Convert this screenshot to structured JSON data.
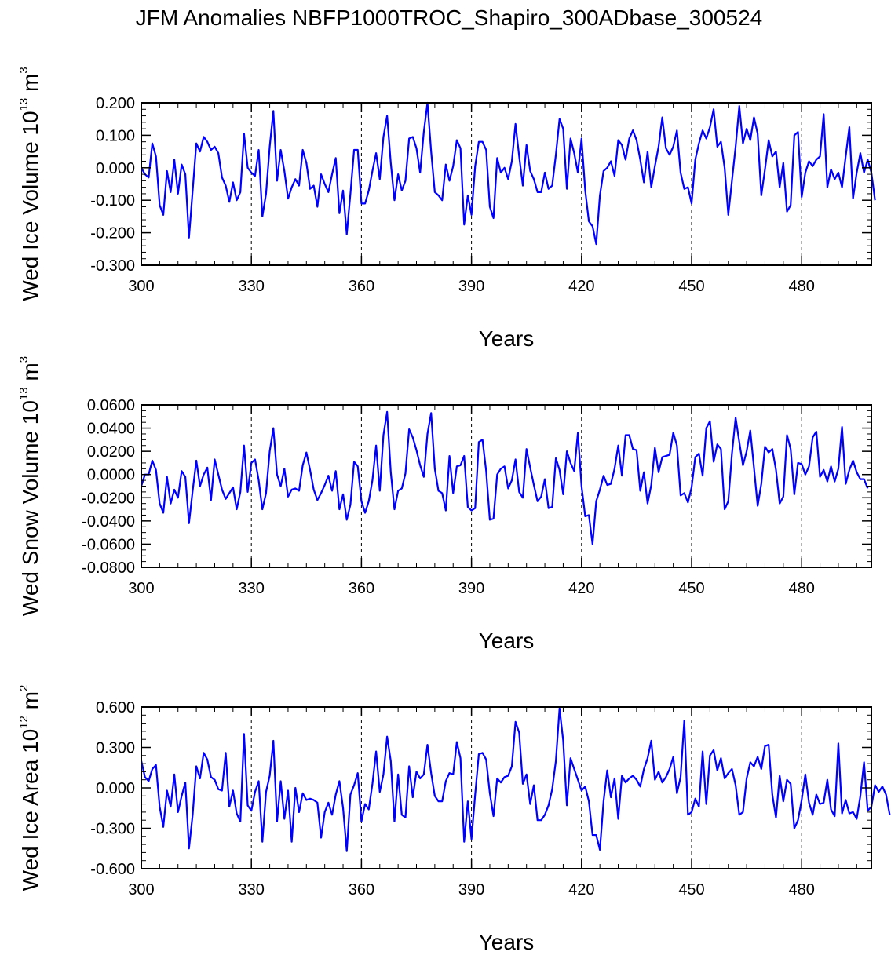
{
  "title": "JFM Anomalies NBFP1000TROC_Shapiro_300ADbase_300524",
  "colors": {
    "line": "#0000ff",
    "axis": "#000000"
  },
  "chart_data": [
    {
      "type": "line",
      "ylabel": {
        "main": "Wed Ice Volume 10",
        "exp": "13",
        "unit": " m",
        "unit_exp": "3"
      },
      "xlabel": "Years",
      "xlim": [
        300,
        499
      ],
      "ylim": [
        -0.3,
        0.2
      ],
      "xticks": [
        300,
        330,
        360,
        390,
        420,
        450,
        480
      ],
      "xtick_labels": [
        "300",
        "330",
        "360",
        "390",
        "420",
        "450",
        "480"
      ],
      "yticks": [
        0.2,
        0.1,
        0.0,
        -0.1,
        -0.2,
        -0.3
      ],
      "ytick_labels": [
        "0.200",
        "0.100",
        "0.000",
        "-0.100",
        "-0.200",
        "-0.300"
      ],
      "yminor_step": 0.02,
      "vlines": [
        330,
        360,
        390,
        420,
        450,
        480
      ],
      "x_start": 300,
      "series": [
        {
          "name": "Wed Ice Volume",
          "values": [
            0.0,
            -0.02,
            -0.03,
            0.075,
            0.035,
            -0.115,
            -0.145,
            -0.01,
            -0.075,
            0.025,
            -0.08,
            0.01,
            -0.02,
            -0.215,
            -0.07,
            0.075,
            0.05,
            0.095,
            0.08,
            0.055,
            0.065,
            0.045,
            -0.03,
            -0.055,
            -0.105,
            -0.045,
            -0.1,
            -0.075,
            0.105,
            0.0,
            -0.015,
            -0.025,
            0.055,
            -0.15,
            -0.08,
            0.065,
            0.175,
            -0.04,
            0.055,
            -0.01,
            -0.095,
            -0.06,
            -0.035,
            -0.055,
            0.055,
            0.015,
            -0.065,
            -0.055,
            -0.12,
            -0.02,
            -0.05,
            -0.075,
            -0.02,
            0.03,
            -0.14,
            -0.07,
            -0.205,
            -0.08,
            0.055,
            0.055,
            -0.11,
            -0.11,
            -0.07,
            -0.01,
            0.045,
            -0.035,
            0.095,
            0.16,
            0.015,
            -0.1,
            -0.02,
            -0.07,
            -0.04,
            0.09,
            0.095,
            0.06,
            -0.015,
            0.11,
            0.2,
            0.05,
            -0.075,
            -0.085,
            -0.1,
            0.01,
            -0.04,
            0.005,
            0.085,
            0.06,
            -0.175,
            -0.085,
            -0.145,
            0.005,
            0.08,
            0.08,
            0.055,
            -0.12,
            -0.155,
            0.03,
            -0.015,
            0.0,
            -0.035,
            0.02,
            0.135,
            0.035,
            -0.055,
            0.07,
            -0.01,
            -0.035,
            -0.075,
            -0.075,
            -0.015,
            -0.065,
            -0.055,
            0.04,
            0.15,
            0.12,
            -0.065,
            0.09,
            0.045,
            -0.015,
            0.09,
            -0.07,
            -0.165,
            -0.18,
            -0.235,
            -0.085,
            -0.01,
            0.0,
            0.02,
            -0.025,
            0.085,
            0.07,
            0.025,
            0.09,
            0.115,
            0.085,
            0.025,
            -0.045,
            0.05,
            -0.06,
            0.005,
            0.065,
            0.155,
            0.06,
            0.04,
            0.065,
            0.115,
            -0.015,
            -0.065,
            -0.06,
            -0.11,
            0.025,
            0.075,
            0.115,
            0.09,
            0.125,
            0.18,
            0.065,
            0.08,
            0.0,
            -0.145,
            -0.04,
            0.065,
            0.19,
            0.075,
            0.12,
            0.085,
            0.155,
            0.105,
            -0.085,
            -0.005,
            0.085,
            0.035,
            0.05,
            -0.06,
            0.015,
            -0.135,
            -0.115,
            0.1,
            0.11,
            -0.09,
            -0.015,
            0.02,
            0.005,
            0.025,
            0.035,
            0.165,
            -0.06,
            -0.005,
            -0.035,
            -0.015,
            -0.06,
            0.035,
            0.125,
            -0.095,
            -0.015,
            0.045,
            -0.015,
            0.025,
            -0.015,
            -0.1
          ]
        }
      ]
    },
    {
      "type": "line",
      "ylabel": {
        "main": "Wed Snow Volume 10",
        "exp": "13",
        "unit": " m",
        "unit_exp": "3"
      },
      "xlabel": "Years",
      "xlim": [
        300,
        499
      ],
      "ylim": [
        -0.08,
        0.06
      ],
      "xticks": [
        300,
        330,
        360,
        390,
        420,
        450,
        480
      ],
      "xtick_labels": [
        "300",
        "330",
        "360",
        "390",
        "420",
        "450",
        "480"
      ],
      "yticks": [
        0.06,
        0.04,
        0.02,
        0.0,
        -0.02,
        -0.04,
        -0.06,
        -0.08
      ],
      "ytick_labels": [
        "0.0600",
        "0.0400",
        "0.0200",
        "0.0000",
        "-0.0200",
        "-0.0400",
        "-0.0600",
        "-0.0800"
      ],
      "yminor_step": 0.005,
      "vlines": [
        330,
        360,
        390,
        420,
        450,
        480
      ],
      "x_start": 300,
      "series": [
        {
          "name": "Wed Snow Volume",
          "values": [
            -0.01,
            0.0,
            0.0,
            0.012,
            0.004,
            -0.025,
            -0.033,
            -0.002,
            -0.025,
            -0.013,
            -0.02,
            0.003,
            -0.002,
            -0.042,
            -0.014,
            0.012,
            -0.01,
            0.0,
            0.006,
            -0.022,
            0.013,
            0.0,
            -0.013,
            -0.021,
            -0.016,
            -0.011,
            -0.03,
            -0.015,
            0.025,
            -0.015,
            0.01,
            0.013,
            -0.005,
            -0.03,
            -0.016,
            0.02,
            0.04,
            0.0,
            -0.01,
            0.005,
            -0.019,
            -0.013,
            -0.012,
            -0.014,
            0.008,
            0.019,
            0.004,
            -0.013,
            -0.022,
            -0.016,
            -0.009,
            -0.001,
            -0.014,
            0.003,
            -0.03,
            -0.017,
            -0.039,
            -0.026,
            0.011,
            0.007,
            -0.023,
            -0.033,
            -0.023,
            -0.005,
            0.025,
            -0.014,
            0.034,
            0.054,
            0.002,
            -0.03,
            -0.014,
            -0.012,
            0.001,
            0.039,
            0.032,
            0.021,
            0.008,
            -0.002,
            0.035,
            0.053,
            0.005,
            -0.014,
            -0.016,
            -0.031,
            0.016,
            -0.016,
            0.007,
            0.008,
            0.016,
            -0.028,
            -0.031,
            -0.029,
            0.028,
            0.03,
            0.003,
            -0.039,
            -0.038,
            0.0,
            0.005,
            0.007,
            -0.012,
            -0.005,
            0.013,
            -0.015,
            -0.02,
            0.022,
            0.006,
            -0.009,
            -0.023,
            -0.019,
            -0.004,
            -0.029,
            -0.028,
            0.014,
            0.004,
            -0.017,
            0.02,
            0.01,
            0.003,
            0.036,
            -0.01,
            -0.036,
            -0.035,
            -0.06,
            -0.023,
            -0.013,
            -0.001,
            -0.009,
            -0.008,
            0.005,
            0.025,
            -0.001,
            0.034,
            0.034,
            0.022,
            0.021,
            -0.014,
            0.002,
            -0.025,
            -0.009,
            0.023,
            0.002,
            0.015,
            0.016,
            0.017,
            0.036,
            0.025,
            -0.018,
            -0.016,
            -0.024,
            -0.011,
            0.015,
            0.018,
            -0.001,
            0.04,
            0.046,
            0.011,
            0.026,
            0.022,
            -0.03,
            -0.023,
            0.018,
            0.049,
            0.028,
            0.008,
            0.02,
            0.038,
            0.006,
            -0.027,
            -0.008,
            0.024,
            0.019,
            0.022,
            0.004,
            -0.025,
            -0.019,
            0.034,
            0.022,
            -0.017,
            0.01,
            0.009,
            0.0,
            0.007,
            0.032,
            0.037,
            -0.002,
            0.004,
            -0.006,
            0.007,
            -0.006,
            0.005,
            0.041,
            -0.008,
            0.004,
            0.012,
            0.002,
            -0.004,
            -0.004,
            -0.012
          ]
        }
      ]
    },
    {
      "type": "line",
      "ylabel": {
        "main": "Wed Ice Area 10",
        "exp": "12",
        "unit": " m",
        "unit_exp": "2"
      },
      "xlabel": "Years",
      "xlim": [
        300,
        499
      ],
      "ylim": [
        -0.6,
        0.6
      ],
      "xticks": [
        300,
        330,
        360,
        390,
        420,
        450,
        480
      ],
      "xtick_labels": [
        "300",
        "330",
        "360",
        "390",
        "420",
        "450",
        "480"
      ],
      "yticks": [
        0.6,
        0.3,
        0.0,
        -0.3,
        -0.6
      ],
      "ytick_labels": [
        "0.600",
        "0.300",
        "0.000",
        "-0.300",
        "-0.600"
      ],
      "yminor_step": 0.06,
      "vlines": [
        330,
        360,
        390,
        420,
        450,
        480
      ],
      "x_start": 300,
      "series": [
        {
          "name": "Wed Ice Area",
          "values": [
            0.2,
            0.08,
            0.05,
            0.14,
            0.17,
            -0.14,
            -0.29,
            -0.02,
            -0.14,
            0.1,
            -0.18,
            -0.06,
            0.04,
            -0.45,
            -0.2,
            0.16,
            0.07,
            0.26,
            0.21,
            0.08,
            0.06,
            -0.01,
            -0.02,
            0.26,
            -0.14,
            -0.02,
            -0.19,
            -0.25,
            0.4,
            -0.13,
            -0.17,
            -0.03,
            0.05,
            -0.4,
            -0.03,
            0.09,
            0.35,
            -0.25,
            0.05,
            -0.23,
            -0.02,
            -0.4,
            0.0,
            -0.18,
            -0.04,
            -0.09,
            -0.08,
            -0.09,
            -0.11,
            -0.37,
            -0.18,
            -0.11,
            -0.2,
            -0.05,
            0.05,
            -0.15,
            -0.47,
            -0.05,
            0.02,
            0.11,
            -0.25,
            -0.12,
            -0.16,
            0.03,
            0.27,
            -0.03,
            0.1,
            0.38,
            0.2,
            -0.25,
            0.1,
            -0.2,
            -0.22,
            0.16,
            -0.07,
            0.12,
            0.07,
            0.1,
            0.32,
            0.11,
            -0.06,
            -0.1,
            -0.1,
            0.05,
            0.11,
            0.1,
            0.34,
            0.22,
            -0.4,
            -0.1,
            -0.38,
            -0.05,
            0.25,
            0.26,
            0.21,
            -0.04,
            -0.21,
            0.07,
            0.04,
            0.08,
            0.09,
            0.16,
            0.49,
            0.41,
            0.03,
            0.1,
            -0.12,
            0.02,
            -0.24,
            -0.24,
            -0.2,
            -0.13,
            -0.01,
            0.2,
            0.59,
            0.35,
            -0.13,
            0.22,
            0.14,
            0.06,
            -0.02,
            0.01,
            -0.1,
            -0.35,
            -0.35,
            -0.46,
            -0.1,
            0.13,
            -0.07,
            0.07,
            -0.23,
            0.09,
            0.04,
            0.07,
            0.09,
            0.06,
            0.01,
            0.14,
            0.22,
            0.35,
            0.06,
            0.12,
            0.04,
            0.08,
            0.14,
            0.23,
            -0.04,
            0.08,
            0.5,
            -0.2,
            -0.18,
            -0.08,
            -0.14,
            0.27,
            -0.12,
            0.24,
            0.28,
            0.13,
            0.22,
            0.07,
            0.11,
            0.14,
            0.02,
            -0.2,
            -0.18,
            0.07,
            0.19,
            0.16,
            0.23,
            0.14,
            0.31,
            0.32,
            -0.05,
            -0.22,
            0.09,
            -0.1,
            0.06,
            0.03,
            -0.3,
            -0.24,
            -0.09,
            0.1,
            -0.11,
            -0.2,
            -0.05,
            -0.12,
            -0.11,
            0.06,
            -0.16,
            -0.21,
            0.33,
            -0.19,
            -0.09,
            -0.19,
            -0.18,
            -0.23,
            -0.06,
            0.19,
            -0.17,
            -0.14,
            0.02,
            -0.03,
            0.01,
            -0.05,
            -0.2
          ]
        }
      ]
    }
  ]
}
